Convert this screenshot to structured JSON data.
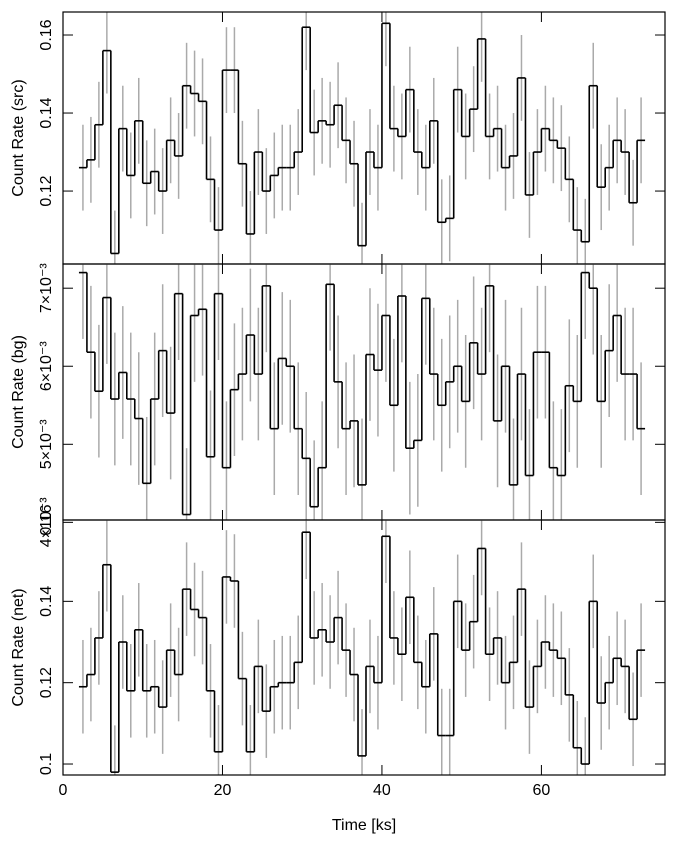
{
  "chart_data": [
    {
      "type": "step",
      "ylabel": "Count Rate (src)",
      "x": [
        2.5,
        3.5,
        4.5,
        5.5,
        6.5,
        7.5,
        8.5,
        9.5,
        10.5,
        11.5,
        12.5,
        13.5,
        14.5,
        15.5,
        16.5,
        17.5,
        18.5,
        19.5,
        20.5,
        21.5,
        22.5,
        23.5,
        24.5,
        25.5,
        26.5,
        27.5,
        28.5,
        29.5,
        30.5,
        31.5,
        32.5,
        33.5,
        34.5,
        35.5,
        36.5,
        37.5,
        38.5,
        39.5,
        40.5,
        41.5,
        42.5,
        43.5,
        44.5,
        45.5,
        46.5,
        47.5,
        48.5,
        49.5,
        50.5,
        51.5,
        52.5,
        53.5,
        54.5,
        55.5,
        56.5,
        57.5,
        58.5,
        59.5,
        60.5,
        61.5,
        62.5,
        63.5,
        64.5,
        65.5,
        66.5,
        67.5,
        68.5,
        69.5,
        70.5,
        71.5,
        72.5
      ],
      "values": [
        0.126,
        0.128,
        0.137,
        0.156,
        0.104,
        0.136,
        0.124,
        0.138,
        0.122,
        0.125,
        0.12,
        0.133,
        0.129,
        0.147,
        0.145,
        0.143,
        0.123,
        0.11,
        0.151,
        0.151,
        0.127,
        0.109,
        0.13,
        0.12,
        0.124,
        0.126,
        0.126,
        0.13,
        0.162,
        0.135,
        0.138,
        0.137,
        0.142,
        0.133,
        0.127,
        0.106,
        0.13,
        0.126,
        0.163,
        0.136,
        0.134,
        0.146,
        0.13,
        0.126,
        0.138,
        0.112,
        0.113,
        0.146,
        0.134,
        0.141,
        0.159,
        0.134,
        0.136,
        0.126,
        0.129,
        0.149,
        0.119,
        0.13,
        0.136,
        0.133,
        0.131,
        0.123,
        0.11,
        0.107,
        0.147,
        0.121,
        0.126,
        0.133,
        0.13,
        0.117,
        0.133
      ],
      "error": 0.011,
      "color": "#000000",
      "error_color": "#aaaaaa",
      "ylim": [
        0.1013,
        0.1659
      ],
      "yticks": [
        0.12,
        0.14,
        0.16
      ]
    },
    {
      "type": "step",
      "ylabel": "Count Rate (bg)",
      "x": [
        2.5,
        3.5,
        4.5,
        5.5,
        6.5,
        7.5,
        8.5,
        9.5,
        10.5,
        11.5,
        12.5,
        13.5,
        14.5,
        15.5,
        16.5,
        17.5,
        18.5,
        19.5,
        20.5,
        21.5,
        22.5,
        23.5,
        24.5,
        25.5,
        26.5,
        27.5,
        28.5,
        29.5,
        30.5,
        31.5,
        32.5,
        33.5,
        34.5,
        35.5,
        36.5,
        37.5,
        38.5,
        39.5,
        40.5,
        41.5,
        42.5,
        43.5,
        44.5,
        45.5,
        46.5,
        47.5,
        48.5,
        49.5,
        50.5,
        51.5,
        52.5,
        53.5,
        54.5,
        55.5,
        56.5,
        57.5,
        58.5,
        59.5,
        60.5,
        61.5,
        62.5,
        63.5,
        64.5,
        65.5,
        66.5,
        67.5,
        68.5,
        69.5,
        70.5,
        71.5,
        72.5
      ],
      "values": [
        0.0072,
        0.00618,
        0.00568,
        0.00688,
        0.00558,
        0.00592,
        0.00558,
        0.00533,
        0.0045,
        0.00558,
        0.0062,
        0.0054,
        0.00693,
        0.0041,
        0.00665,
        0.00673,
        0.00484,
        0.00693,
        0.0047,
        0.0057,
        0.0059,
        0.0064,
        0.0059,
        0.00703,
        0.0052,
        0.0061,
        0.006,
        0.0052,
        0.00482,
        0.0042,
        0.0047,
        0.00705,
        0.0058,
        0.0052,
        0.0053,
        0.00448,
        0.00615,
        0.00595,
        0.00665,
        0.0055,
        0.0069,
        0.00495,
        0.00505,
        0.00687,
        0.0059,
        0.0055,
        0.0058,
        0.006,
        0.00555,
        0.0063,
        0.0059,
        0.00703,
        0.0053,
        0.006,
        0.00448,
        0.0059,
        0.0046,
        0.00618,
        0.00618,
        0.0047,
        0.0046,
        0.00575,
        0.00555,
        0.0072,
        0.007,
        0.00555,
        0.0062,
        0.00665,
        0.0059,
        0.0059,
        0.0052
      ],
      "error": 0.00085,
      "color": "#000000",
      "error_color": "#aaaaaa",
      "ylim": [
        0.00403,
        0.00731
      ],
      "yticks": [
        {
          "value": 0.004,
          "label": "4×10⁻³"
        },
        {
          "value": 0.005,
          "label": "5×10⁻³"
        },
        {
          "value": 0.006,
          "label": "6×10⁻³"
        },
        {
          "value": 0.007,
          "label": "7×10⁻³"
        }
      ]
    },
    {
      "type": "step",
      "ylabel": "Count Rate (net)",
      "xlabel": "Time [ks]",
      "x": [
        2.5,
        3.5,
        4.5,
        5.5,
        6.5,
        7.5,
        8.5,
        9.5,
        10.5,
        11.5,
        12.5,
        13.5,
        14.5,
        15.5,
        16.5,
        17.5,
        18.5,
        19.5,
        20.5,
        21.5,
        22.5,
        23.5,
        24.5,
        25.5,
        26.5,
        27.5,
        28.5,
        29.5,
        30.5,
        31.5,
        32.5,
        33.5,
        34.5,
        35.5,
        36.5,
        37.5,
        38.5,
        39.5,
        40.5,
        41.5,
        42.5,
        43.5,
        44.5,
        45.5,
        46.5,
        47.5,
        48.5,
        49.5,
        50.5,
        51.5,
        52.5,
        53.5,
        54.5,
        55.5,
        56.5,
        57.5,
        58.5,
        59.5,
        60.5,
        61.5,
        62.5,
        63.5,
        64.5,
        65.5,
        66.5,
        67.5,
        68.5,
        69.5,
        70.5,
        71.5,
        72.5
      ],
      "values": [
        0.119,
        0.122,
        0.131,
        0.149,
        0.098,
        0.13,
        0.118,
        0.133,
        0.118,
        0.119,
        0.114,
        0.128,
        0.122,
        0.143,
        0.138,
        0.136,
        0.118,
        0.103,
        0.146,
        0.145,
        0.121,
        0.103,
        0.124,
        0.113,
        0.119,
        0.12,
        0.12,
        0.125,
        0.157,
        0.131,
        0.133,
        0.13,
        0.136,
        0.128,
        0.122,
        0.102,
        0.124,
        0.12,
        0.156,
        0.131,
        0.127,
        0.141,
        0.125,
        0.119,
        0.132,
        0.107,
        0.107,
        0.14,
        0.128,
        0.135,
        0.153,
        0.127,
        0.131,
        0.12,
        0.125,
        0.143,
        0.114,
        0.124,
        0.13,
        0.128,
        0.126,
        0.117,
        0.104,
        0.1,
        0.14,
        0.115,
        0.12,
        0.126,
        0.124,
        0.111,
        0.128
      ],
      "error": 0.0115,
      "color": "#000000",
      "error_color": "#aaaaaa",
      "ylim": [
        0.0973,
        0.16
      ],
      "yticks": [
        0.1,
        0.12,
        0.14,
        0.16
      ],
      "xlim": [
        0,
        75.5
      ],
      "xticks": [
        0,
        20,
        40,
        60
      ]
    }
  ]
}
